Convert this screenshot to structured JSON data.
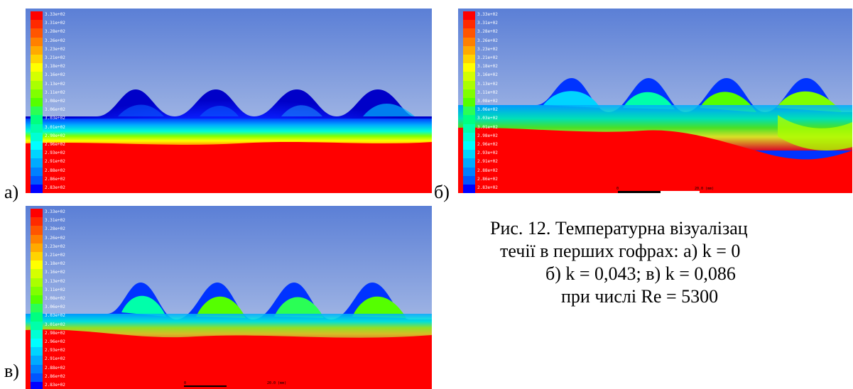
{
  "figure": {
    "panels": [
      {
        "letter": "а)",
        "id": "a"
      },
      {
        "letter": "б)",
        "id": "b",
        "scale_label": "20.0 (mm)",
        "scale_zero": "0"
      },
      {
        "letter": "в)",
        "id": "c",
        "scale_label": "20.0 (mm)",
        "scale_zero": "0"
      }
    ],
    "legend_ticks": [
      "3.33e+02",
      "3.31e+02",
      "3.28e+02",
      "3.26e+02",
      "3.23e+02",
      "3.21e+02",
      "3.18e+02",
      "3.16e+02",
      "3.13e+02",
      "3.11e+02",
      "3.08e+02",
      "3.06e+02",
      "3.03e+02",
      "3.01e+02",
      "2.98e+02",
      "2.96e+02",
      "2.93e+02",
      "2.91e+02",
      "2.88e+02",
      "2.86e+02",
      "2.83e+02"
    ],
    "legend_colors": [
      "#ff0000",
      "#ff2a00",
      "#ff5500",
      "#ff8000",
      "#ffaa00",
      "#ffd400",
      "#ffff00",
      "#d4ff00",
      "#aaff00",
      "#80ff00",
      "#55ff00",
      "#2aff55",
      "#00ff80",
      "#00ffaa",
      "#00ffd4",
      "#00ffff",
      "#00d4ff",
      "#00aaff",
      "#0080ff",
      "#0055ff",
      "#0000ff"
    ],
    "colors": {
      "hot": "#ff0000",
      "cold": "#0000ff",
      "sky_top": "#5b7fd6",
      "sky_bottom": "#c9d5ec"
    }
  },
  "caption": {
    "line1": "Рис. 12. Температурна візуалізац",
    "line2": "течії в перших гофрах: а) k = 0",
    "line3": "б) k = 0,043; в) k = 0,086",
    "line4": "при числі Re = 5300"
  }
}
